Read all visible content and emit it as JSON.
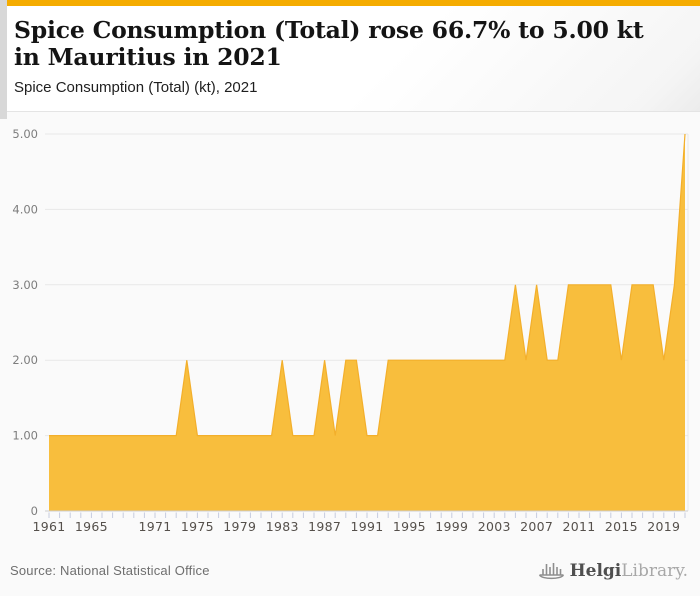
{
  "header": {
    "title": "Spice Consumption (Total) rose 66.7% to 5.00 kt in Mauritius in 2021",
    "subtitle": "Spice Consumption (Total) (kt), 2021"
  },
  "chart_data": {
    "type": "area",
    "title": "Spice Consumption (Total) rose 66.7% to 5.00 kt in Mauritius in 2021",
    "subtitle": "Spice Consumption (Total) (kt), 2021",
    "series_name": "Spice Consumption (Total) (kt)",
    "x_range": [
      1961,
      2021
    ],
    "values": [
      1,
      1,
      1,
      1,
      1,
      1,
      1,
      1,
      1,
      1,
      1,
      1,
      1,
      2,
      1,
      1,
      1,
      1,
      1,
      1,
      1,
      1,
      2,
      1,
      1,
      1,
      2,
      1,
      2,
      2,
      1,
      1,
      2,
      2,
      2,
      2,
      2,
      2,
      2,
      2,
      2,
      2,
      2,
      2,
      3,
      2,
      3,
      2,
      2,
      3,
      3,
      3,
      3,
      3,
      2,
      3,
      3,
      3,
      2,
      3,
      5
    ],
    "ylim": [
      0,
      5
    ],
    "y_ticks": [
      {
        "label": "5.00",
        "value": 5
      },
      {
        "label": "4.00",
        "value": 4
      },
      {
        "label": "3.00",
        "value": 3
      },
      {
        "label": "2.00",
        "value": 2
      },
      {
        "label": "1.00",
        "value": 1
      },
      {
        "label": "0",
        "value": 0
      }
    ],
    "x_tick_labels": [
      "1961",
      "1965",
      "1971",
      "1975",
      "1979",
      "1983",
      "1987",
      "1991",
      "1995",
      "1999",
      "2003",
      "2007",
      "2011",
      "2015",
      "2019"
    ],
    "grid": "horizontal",
    "legend": "none"
  },
  "footer": {
    "source": "Source: National Statistical Office",
    "logo_bold": "Helgi",
    "logo_light": "Library."
  },
  "colors": {
    "top_bar": "#F5AC00",
    "area": "#F8BE3D",
    "area_line": "#F3AF2B",
    "grid": "#E8E8E8",
    "axis_line": "#CDCDCD",
    "tick": "#C6CCDF",
    "axis_label": "#7D7D7D",
    "x_label": "#55504B"
  }
}
